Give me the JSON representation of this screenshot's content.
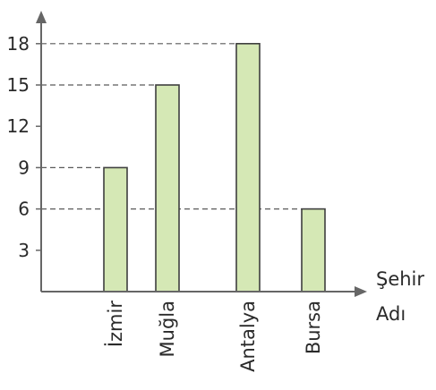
{
  "chart_data": {
    "type": "bar",
    "categories": [
      "İzmir",
      "Muğla",
      "Antalya",
      "Bursa"
    ],
    "values": [
      9,
      15,
      18,
      6
    ],
    "xlabel": "Şehir Adı",
    "xlabel_lines": [
      "Şehir",
      "Adı"
    ],
    "ylabel": "",
    "yticks": [
      3,
      6,
      9,
      12,
      15,
      18
    ],
    "ylim": [
      0,
      20
    ],
    "dashed_guides": [
      6,
      9,
      15,
      18
    ],
    "grid": false,
    "bar_fill": "#d5e8b5",
    "bar_stroke": "#3f3f3f",
    "axis_color": "#666666"
  }
}
